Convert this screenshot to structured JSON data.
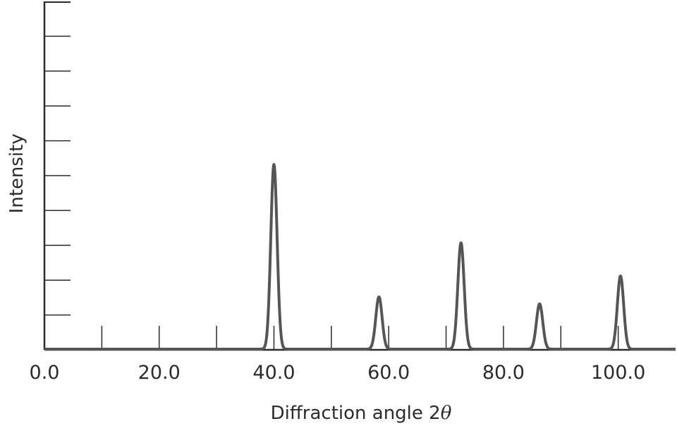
{
  "chart_data": {
    "type": "line",
    "title": "",
    "xlabel_prefix": "Diffraction angle 2",
    "xlabel_symbol": "θ",
    "ylabel": "Intensity",
    "xlim": [
      0,
      110
    ],
    "ylim": [
      0,
      10
    ],
    "x_tick_values": [
      0,
      10,
      20,
      30,
      40,
      50,
      60,
      70,
      80,
      90,
      100
    ],
    "x_tick_labels": [
      "0.0",
      "20.0",
      "40.0",
      "60.0",
      "80.0",
      "100.0"
    ],
    "x_tick_label_values": [
      0,
      20,
      40,
      60,
      80,
      100
    ],
    "y_tick_values": [
      1,
      2,
      3,
      4,
      5,
      6,
      7,
      8,
      9
    ],
    "grid": false,
    "peaks": [
      {
        "position": 40.0,
        "intensity": 5.3
      },
      {
        "position": 58.3,
        "intensity": 1.5
      },
      {
        "position": 72.6,
        "intensity": 3.05
      },
      {
        "position": 86.3,
        "intensity": 1.3
      },
      {
        "position": 100.4,
        "intensity": 2.1
      }
    ],
    "line_color": "#555555",
    "axis_color": "#2b2b2b"
  }
}
